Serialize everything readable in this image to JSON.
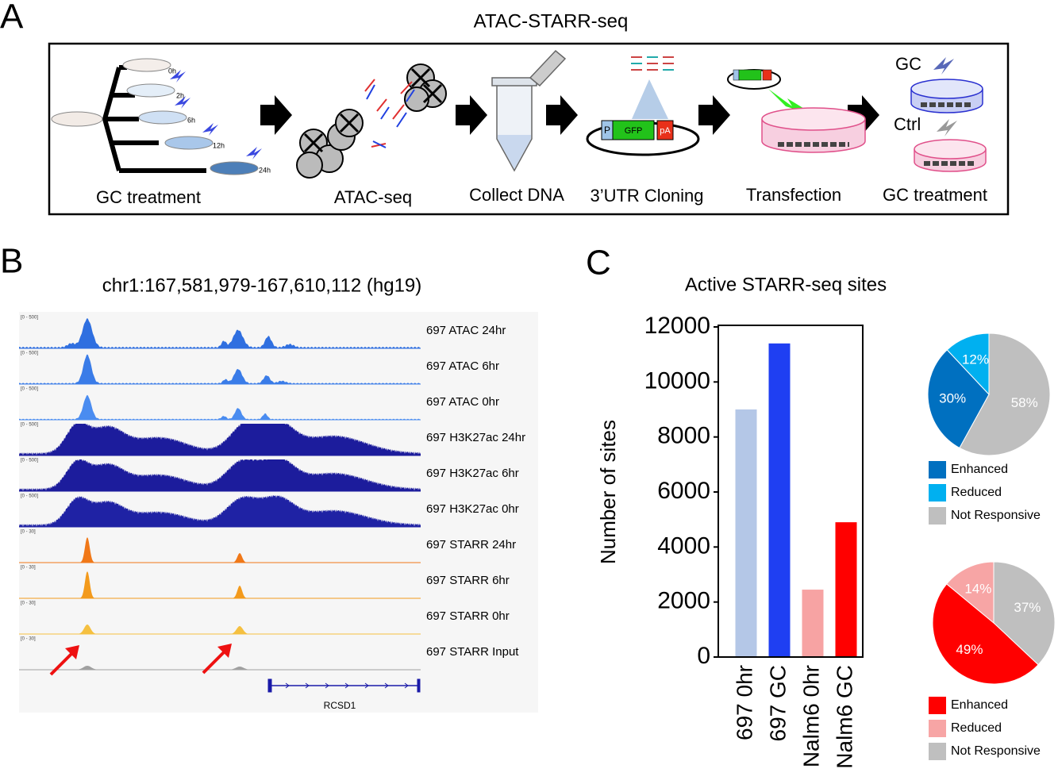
{
  "panel_a": {
    "letter": "A",
    "title": "ATAC-STARR-seq",
    "steps": [
      "GC treatment",
      "ATAC-seq",
      "Collect DNA",
      "3’UTR Cloning",
      "Transfection",
      "GC treatment"
    ],
    "times": [
      "0h",
      "2h",
      "6h",
      "12h",
      "24h"
    ],
    "plasmid": [
      "P",
      "GFP",
      "pA"
    ],
    "conditions": [
      "GC",
      "Ctrl"
    ]
  },
  "panel_b": {
    "letter": "B",
    "title": "chr1:167,581,979-167,610,112 (hg19)",
    "gene": "RCSD1",
    "tracks": [
      {
        "name": "697 ATAC 24hr",
        "range": "[0 - 500]",
        "color": "#2f6fe0"
      },
      {
        "name": "697 ATAC 6hr",
        "range": "[0 - 500]",
        "color": "#3a7ce8"
      },
      {
        "name": "697 ATAC 0hr",
        "range": "[0 - 500]",
        "color": "#4a8cf0"
      },
      {
        "name": "697 H3K27ac 24hr",
        "range": "[0 - 500]",
        "color": "#1c1c9c"
      },
      {
        "name": "697 H3K27ac 6hr",
        "range": "[0 - 500]",
        "color": "#1c1c9c"
      },
      {
        "name": "697 H3K27ac 0hr",
        "range": "[0 - 500]",
        "color": "#1f22a4"
      },
      {
        "name": "697 STARR 24hr",
        "range": "[0 - 30]",
        "color": "#f07818"
      },
      {
        "name": "697 STARR 6hr",
        "range": "[0 - 30]",
        "color": "#f39a1c"
      },
      {
        "name": "697 STARR 0hr",
        "range": "[0 - 30]",
        "color": "#f5c040"
      },
      {
        "name": "697 STARR Input",
        "range": "[0 - 30]",
        "color": "#a0a0a0"
      }
    ]
  },
  "panel_c": {
    "letter": "C"
  },
  "chart_data": [
    {
      "type": "bar",
      "title": "Active STARR-seq sites",
      "y_label": "Number of sites",
      "categories": [
        "697 0hr",
        "697 GC",
        "Nalm6 0hr",
        "Nalm6 GC"
      ],
      "values": [
        9000,
        11400,
        2450,
        4900
      ],
      "colors": [
        "#b4c7e7",
        "#1f3ff2",
        "#f7a3a3",
        "#ff0000"
      ],
      "ylim": [
        0,
        12000
      ],
      "yticks": [
        0,
        2000,
        4000,
        6000,
        8000,
        10000,
        12000
      ]
    },
    {
      "type": "pie",
      "categories": [
        "Enhanced",
        "Reduced",
        "Not Responsive"
      ],
      "values": [
        30,
        12,
        58
      ],
      "value_labels": [
        "30%",
        "12%",
        "58%"
      ],
      "colors": [
        "#0070c0",
        "#00b0f0",
        "#bfbfbf"
      ],
      "legend": "bottom"
    },
    {
      "type": "pie",
      "categories": [
        "Enhanced",
        "Reduced",
        "Not Responsive"
      ],
      "values": [
        49,
        14,
        37
      ],
      "value_labels": [
        "49%",
        "14%",
        "37%"
      ],
      "colors": [
        "#ff0000",
        "#f7a5a5",
        "#bfbfbf"
      ],
      "legend": "bottom"
    }
  ]
}
